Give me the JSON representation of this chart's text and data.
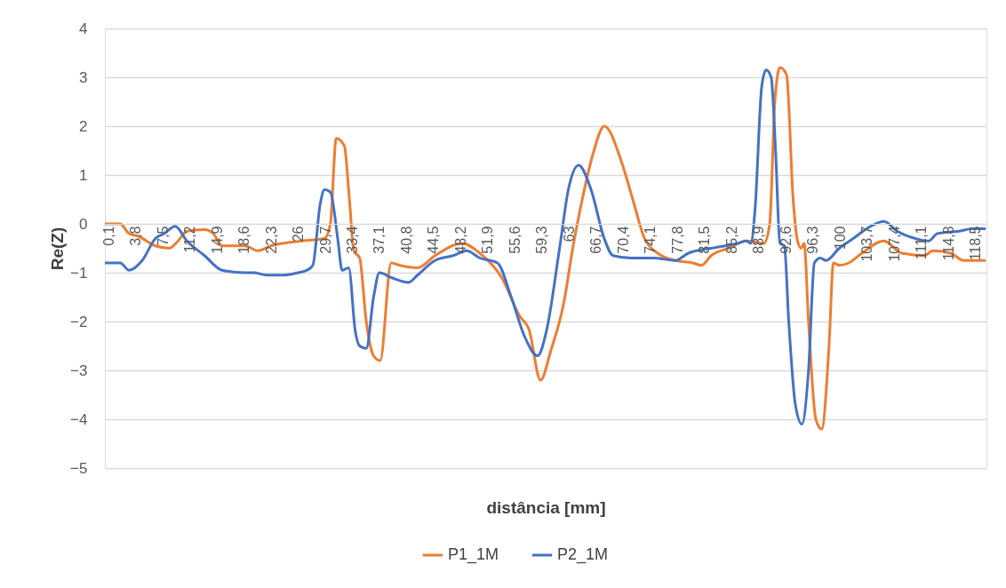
{
  "chart_data": {
    "type": "line",
    "xlabel": "distância [mm]",
    "ylabel": "Re(Z)",
    "xlim": [
      -0.4,
      120
    ],
    "ylim": [
      -5,
      4
    ],
    "yticks": [
      -5,
      -4,
      -3,
      -2,
      -1,
      0,
      1,
      2,
      3,
      4
    ],
    "xticks": [
      {
        "value": 0.1,
        "label": "0,1"
      },
      {
        "value": 3.8,
        "label": "3,8"
      },
      {
        "value": 7.5,
        "label": "7,5"
      },
      {
        "value": 11.2,
        "label": "11,2"
      },
      {
        "value": 14.9,
        "label": "14,9"
      },
      {
        "value": 18.6,
        "label": "18,6"
      },
      {
        "value": 22.3,
        "label": "22,3"
      },
      26,
      {
        "value": 29.7,
        "label": "29,7"
      },
      {
        "value": 33.4,
        "label": "33,4"
      },
      {
        "value": 37.1,
        "label": "37,1"
      },
      {
        "value": 40.8,
        "label": "40,8"
      },
      {
        "value": 44.5,
        "label": "44,5"
      },
      {
        "value": 48.2,
        "label": "48,2"
      },
      {
        "value": 51.9,
        "label": "51,9"
      },
      {
        "value": 55.6,
        "label": "55,6"
      },
      {
        "value": 59.3,
        "label": "59,3"
      },
      63,
      {
        "value": 66.7,
        "label": "66,7"
      },
      {
        "value": 70.4,
        "label": "70,4"
      },
      {
        "value": 74.1,
        "label": "74,1"
      },
      {
        "value": 77.8,
        "label": "77,8"
      },
      {
        "value": 81.5,
        "label": "81,5"
      },
      {
        "value": 85.2,
        "label": "85,2"
      },
      {
        "value": 88.9,
        "label": "88,9"
      },
      {
        "value": 92.6,
        "label": "92,6"
      },
      {
        "value": 96.3,
        "label": "96,3"
      },
      100,
      {
        "value": 103.7,
        "label": "103,7"
      },
      {
        "value": 107.4,
        "label": "107,4"
      },
      {
        "value": 111.1,
        "label": "111,1"
      },
      {
        "value": 114.8,
        "label": "114,8"
      },
      {
        "value": 118.5,
        "label": "118,5"
      }
    ],
    "grid": "y",
    "legend": "bottom",
    "line_style": "solid",
    "marker": "none",
    "series": [
      {
        "name": "P1_1M",
        "color": "#ed7d31",
        "x": [
          -0.4,
          1.7,
          2.9,
          4.1,
          6.5,
          8.4,
          9.6,
          10.8,
          13.2,
          14.4,
          15.6,
          18.7,
          20.5,
          22.3,
          26.5,
          29.6,
          30.4,
          31.2,
          32.3,
          33.0,
          33.6,
          34.4,
          35.3,
          36.3,
          37.2,
          38.7,
          39.9,
          42.3,
          44.7,
          48.4,
          50.8,
          53.8,
          56.3,
          57.5,
          59.1,
          60.5,
          62.3,
          63.5,
          64.8,
          66.3,
          67.8,
          70.2,
          71.7,
          73.3,
          75.1,
          77.5,
          79.9,
          81.1,
          82.4,
          84.8,
          87.2,
          89.6,
          90.4,
          91.1,
          91.8,
          92.7,
          93.6,
          94.2,
          94.7,
          95.1,
          95.7,
          96.7,
          97.5,
          98.5,
          99.1,
          99.9,
          101.2,
          103.0,
          106.0,
          108.4,
          111.5,
          112.7,
          115.1,
          116.9,
          119.9
        ],
        "values": [
          0,
          0,
          -0.2,
          -0.25,
          -0.45,
          -0.5,
          -0.35,
          -0.15,
          -0.12,
          -0.2,
          -0.45,
          -0.45,
          -0.55,
          -0.45,
          -0.35,
          -0.3,
          0,
          1.75,
          1.6,
          0.5,
          -0.55,
          -0.7,
          -2.0,
          -2.7,
          -2.8,
          -0.8,
          -0.85,
          -0.9,
          -0.65,
          -0.4,
          -0.6,
          -1.1,
          -1.9,
          -2.15,
          -3.2,
          -2.6,
          -1.6,
          -0.5,
          0.5,
          1.45,
          2.0,
          1.25,
          0.5,
          -0.3,
          -0.6,
          -0.75,
          -0.8,
          -0.85,
          -0.65,
          -0.5,
          -0.35,
          -0.4,
          0,
          2.5,
          3.2,
          3.05,
          0.5,
          -0.35,
          -0.5,
          -0.4,
          -2.0,
          -4.0,
          -4.2,
          -2.5,
          -0.8,
          -0.85,
          -0.8,
          -0.6,
          -0.35,
          -0.6,
          -0.65,
          -0.55,
          -0.6,
          -0.75,
          -0.75
        ]
      },
      {
        "name": "P2_1M",
        "color": "#4472c4",
        "x": [
          -0.4,
          1.7,
          2.9,
          4.7,
          6.5,
          7.7,
          9.2,
          10.8,
          13.2,
          15.6,
          18.7,
          19.9,
          21.7,
          24.1,
          26.0,
          27.2,
          28.0,
          29.0,
          29.6,
          30.4,
          31.4,
          32.0,
          32.9,
          33.8,
          34.4,
          35.3,
          36.3,
          37.1,
          38.7,
          41.1,
          42.3,
          44.7,
          47.2,
          49.0,
          50.8,
          53.2,
          55.1,
          56.9,
          58.7,
          59.9,
          61.7,
          62.9,
          64.3,
          66.0,
          67.8,
          69.0,
          71.4,
          74.5,
          77.5,
          79.3,
          82.4,
          86.0,
          87.2,
          87.8,
          88.4,
          89.3,
          89.9,
          90.6,
          91.2,
          91.8,
          92.4,
          93.0,
          93.9,
          94.8,
          95.7,
          96.5,
          97.3,
          98.1,
          99.9,
          101.8,
          104.2,
          106.0,
          107.8,
          110.3,
          112.1,
          113.3,
          116.3,
          118.1,
          119.9
        ],
        "values": [
          -0.8,
          -0.8,
          -0.95,
          -0.75,
          -0.3,
          -0.2,
          -0.05,
          -0.35,
          -0.65,
          -0.95,
          -1.0,
          -1.0,
          -1.05,
          -1.05,
          -1.0,
          -0.95,
          -0.85,
          0.4,
          0.7,
          0.65,
          -0.3,
          -0.95,
          -0.9,
          -2.2,
          -2.5,
          -2.55,
          -1.5,
          -1.0,
          -1.1,
          -1.2,
          -1.05,
          -0.75,
          -0.65,
          -0.55,
          -0.7,
          -0.8,
          -1.5,
          -2.3,
          -2.7,
          -2.2,
          -0.5,
          0.7,
          1.2,
          0.7,
          -0.3,
          -0.65,
          -0.7,
          -0.7,
          -0.75,
          -0.6,
          -0.5,
          -0.4,
          -0.35,
          -0.4,
          0.3,
          2.8,
          3.15,
          3.0,
          1.5,
          -0.4,
          -0.45,
          -2.0,
          -3.7,
          -4.1,
          -3.0,
          -0.8,
          -0.7,
          -0.75,
          -0.5,
          -0.3,
          -0.05,
          0.05,
          -0.15,
          -0.3,
          -0.35,
          -0.2,
          -0.15,
          -0.1,
          -0.1
        ]
      }
    ]
  }
}
